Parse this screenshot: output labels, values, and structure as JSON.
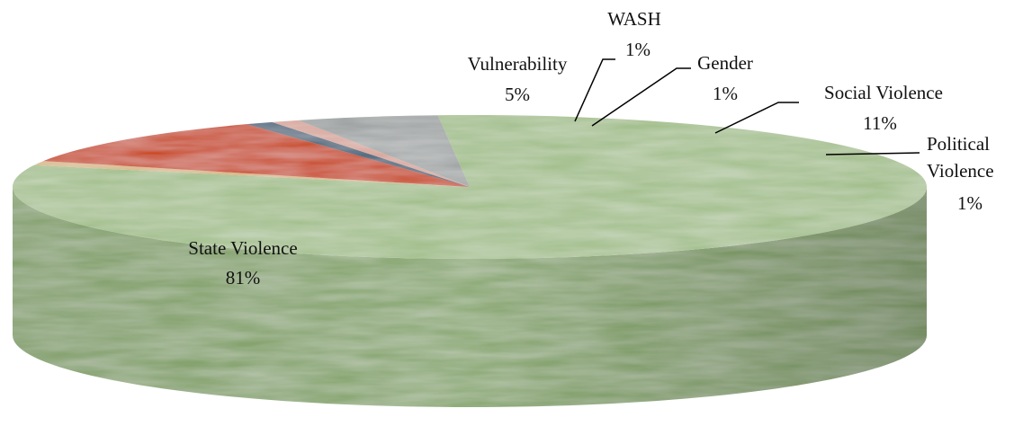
{
  "chart_data": {
    "type": "pie",
    "style": "3d",
    "slices": [
      {
        "label": "State Violence",
        "percent_label": "81%",
        "value": 81,
        "color": "#a4c08e",
        "side_color": "#8aa872"
      },
      {
        "label": "Political Violence",
        "percent_label": "1%",
        "value": 1,
        "color": "#d8b887",
        "side_color": "#b89a6a"
      },
      {
        "label": "Social Violence",
        "percent_label": "11%",
        "value": 11,
        "color": "#c9461f",
        "side_color": "#a33516"
      },
      {
        "label": "Gender",
        "percent_label": "1%",
        "value": 1,
        "color": "#3f5f78",
        "side_color": "#2e475b"
      },
      {
        "label": "WASH",
        "percent_label": "1%",
        "value": 1,
        "color": "#d7a49a",
        "side_color": "#b9877d"
      },
      {
        "label": "Vulnerability",
        "percent_label": "5%",
        "value": 5,
        "color": "#a0a4a4",
        "side_color": "#838787"
      }
    ]
  }
}
